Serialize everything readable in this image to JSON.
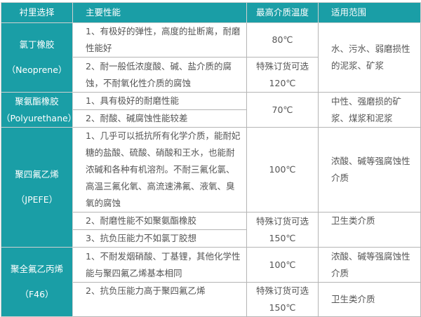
{
  "header": {
    "lining": "衬里选择",
    "properties": "主要性能",
    "max_temp": "最高介质温度",
    "application": "适用范围"
  },
  "colors": {
    "header_bg": "#1a9ea6",
    "text": "#555555"
  },
  "rows": [
    {
      "name": "氯丁橡胶",
      "code": "（Neoprene）",
      "props": [
        "1、有极好的弹性，高度的扯断离，耐磨性能好",
        "2、耐一般低浓度酸、碱、盐介质的腐蚀，不耐氧化性介质的腐蚀"
      ],
      "temps": [
        "80℃",
        "特殊订货可选",
        "120℃"
      ],
      "uses": [
        "水、污水、弱磨损性的泥浆、矿浆"
      ]
    },
    {
      "name": "聚氨酯橡胶",
      "code": "（Polyurethane）",
      "props": [
        "1、具有极好的耐磨性能",
        "2、耐酸、碱腐蚀性能较差"
      ],
      "temps": [
        "70℃"
      ],
      "uses": [
        "中性、强磨损的矿浆、煤浆和泥浆"
      ]
    },
    {
      "name": "聚四氟乙烯",
      "code": "（JPEFE）",
      "props": [
        "1、几乎可以抵抗所有化学介质，能耐妃糖的盐酸、硫酸、硝酸和王水，也能耐浓碱和各种有机溶剂。不耐三氟化氯、高温三氟化氧、高流速沸氟、液氧、臭氧的腐蚀",
        "2、耐磨性能不如聚氨酯橡胶",
        "3、抗负压能力不如氯丁胶想"
      ],
      "temps": [
        "100℃",
        "特殊订货可选",
        "150℃"
      ],
      "uses": [
        "浓酸、碱等强腐蚀性介质",
        "卫生类介质"
      ]
    },
    {
      "name": "聚全氟乙丙烯",
      "code": "（F46）",
      "props": [
        "1、不耐发烟硝酸、丁基锂，其他化学性能与聚四氟乙烯基本相同",
        "2、抗负压能力高于聚四氟乙烯"
      ],
      "temps": [
        "100℃",
        "特殊订货可选",
        "150℃"
      ],
      "uses": [
        "浓酸、碱等强腐蚀性介质",
        "卫生类介质"
      ]
    }
  ]
}
